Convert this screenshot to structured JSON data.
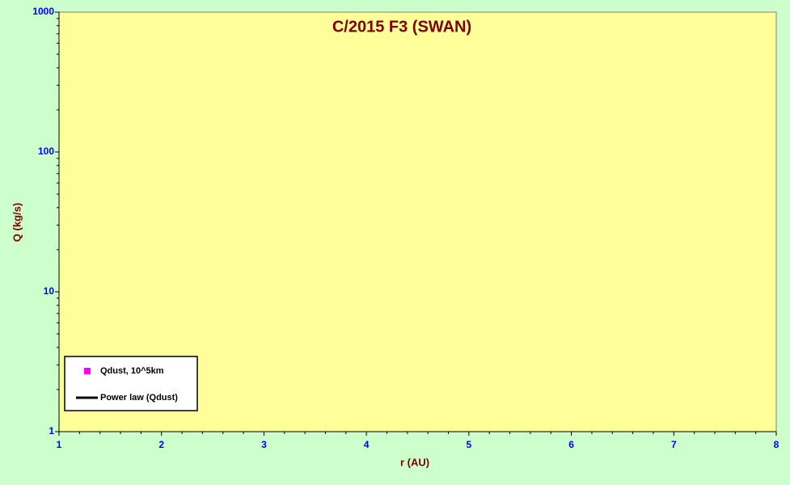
{
  "chart_data": {
    "type": "scatter",
    "title": "C/2015 F3 (SWAN)",
    "xlabel": "r (AU)",
    "ylabel": "Q (kg/s)",
    "xlim": [
      1,
      8
    ],
    "xticks": [
      1,
      2,
      3,
      4,
      5,
      6,
      7,
      8
    ],
    "ylim": [
      1,
      1000
    ],
    "yticks": [
      1,
      10,
      100,
      1000
    ],
    "log_y": true,
    "legend_position": "lower left",
    "series": [
      {
        "name": "Qdust, 10^5km",
        "color": "#ff00ff",
        "marker": "square",
        "x": [],
        "values": []
      },
      {
        "name": "Power law (Qdust)",
        "color": "#000000",
        "marker": "line",
        "x": [],
        "values": []
      }
    ]
  }
}
